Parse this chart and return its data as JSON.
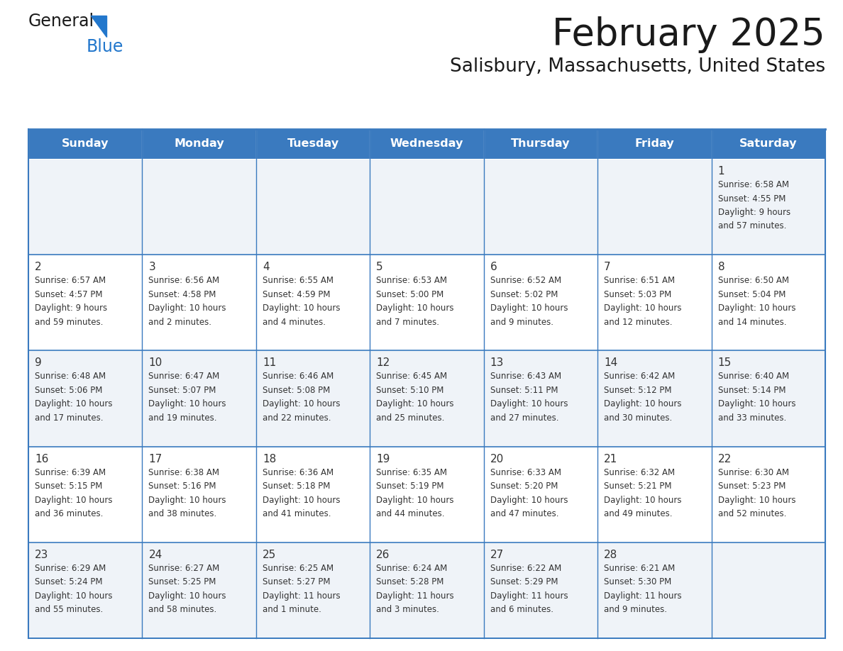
{
  "title": "February 2025",
  "subtitle": "Salisbury, Massachusetts, United States",
  "header_bg": "#3a7abf",
  "header_text": "#ffffff",
  "row_bg": [
    "#eff3f8",
    "#ffffff",
    "#eff3f8",
    "#ffffff",
    "#eff3f8"
  ],
  "border_color": "#3a7abf",
  "cell_border_color": "#3a7abf",
  "day_headers": [
    "Sunday",
    "Monday",
    "Tuesday",
    "Wednesday",
    "Thursday",
    "Friday",
    "Saturday"
  ],
  "title_color": "#1a1a1a",
  "subtitle_color": "#1a1a1a",
  "cell_text_color": "#333333",
  "day_num_color": "#333333",
  "logo_text_color": "#1a1a1a",
  "logo_blue_color": "#2277cc",
  "logo_triangle_color": "#2277cc",
  "days": [
    {
      "day": 1,
      "col": 6,
      "row": 0,
      "sunrise": "6:58 AM",
      "sunset": "4:55 PM",
      "daylight_line1": "9 hours",
      "daylight_line2": "and 57 minutes."
    },
    {
      "day": 2,
      "col": 0,
      "row": 1,
      "sunrise": "6:57 AM",
      "sunset": "4:57 PM",
      "daylight_line1": "9 hours",
      "daylight_line2": "and 59 minutes."
    },
    {
      "day": 3,
      "col": 1,
      "row": 1,
      "sunrise": "6:56 AM",
      "sunset": "4:58 PM",
      "daylight_line1": "10 hours",
      "daylight_line2": "and 2 minutes."
    },
    {
      "day": 4,
      "col": 2,
      "row": 1,
      "sunrise": "6:55 AM",
      "sunset": "4:59 PM",
      "daylight_line1": "10 hours",
      "daylight_line2": "and 4 minutes."
    },
    {
      "day": 5,
      "col": 3,
      "row": 1,
      "sunrise": "6:53 AM",
      "sunset": "5:00 PM",
      "daylight_line1": "10 hours",
      "daylight_line2": "and 7 minutes."
    },
    {
      "day": 6,
      "col": 4,
      "row": 1,
      "sunrise": "6:52 AM",
      "sunset": "5:02 PM",
      "daylight_line1": "10 hours",
      "daylight_line2": "and 9 minutes."
    },
    {
      "day": 7,
      "col": 5,
      "row": 1,
      "sunrise": "6:51 AM",
      "sunset": "5:03 PM",
      "daylight_line1": "10 hours",
      "daylight_line2": "and 12 minutes."
    },
    {
      "day": 8,
      "col": 6,
      "row": 1,
      "sunrise": "6:50 AM",
      "sunset": "5:04 PM",
      "daylight_line1": "10 hours",
      "daylight_line2": "and 14 minutes."
    },
    {
      "day": 9,
      "col": 0,
      "row": 2,
      "sunrise": "6:48 AM",
      "sunset": "5:06 PM",
      "daylight_line1": "10 hours",
      "daylight_line2": "and 17 minutes."
    },
    {
      "day": 10,
      "col": 1,
      "row": 2,
      "sunrise": "6:47 AM",
      "sunset": "5:07 PM",
      "daylight_line1": "10 hours",
      "daylight_line2": "and 19 minutes."
    },
    {
      "day": 11,
      "col": 2,
      "row": 2,
      "sunrise": "6:46 AM",
      "sunset": "5:08 PM",
      "daylight_line1": "10 hours",
      "daylight_line2": "and 22 minutes."
    },
    {
      "day": 12,
      "col": 3,
      "row": 2,
      "sunrise": "6:45 AM",
      "sunset": "5:10 PM",
      "daylight_line1": "10 hours",
      "daylight_line2": "and 25 minutes."
    },
    {
      "day": 13,
      "col": 4,
      "row": 2,
      "sunrise": "6:43 AM",
      "sunset": "5:11 PM",
      "daylight_line1": "10 hours",
      "daylight_line2": "and 27 minutes."
    },
    {
      "day": 14,
      "col": 5,
      "row": 2,
      "sunrise": "6:42 AM",
      "sunset": "5:12 PM",
      "daylight_line1": "10 hours",
      "daylight_line2": "and 30 minutes."
    },
    {
      "day": 15,
      "col": 6,
      "row": 2,
      "sunrise": "6:40 AM",
      "sunset": "5:14 PM",
      "daylight_line1": "10 hours",
      "daylight_line2": "and 33 minutes."
    },
    {
      "day": 16,
      "col": 0,
      "row": 3,
      "sunrise": "6:39 AM",
      "sunset": "5:15 PM",
      "daylight_line1": "10 hours",
      "daylight_line2": "and 36 minutes."
    },
    {
      "day": 17,
      "col": 1,
      "row": 3,
      "sunrise": "6:38 AM",
      "sunset": "5:16 PM",
      "daylight_line1": "10 hours",
      "daylight_line2": "and 38 minutes."
    },
    {
      "day": 18,
      "col": 2,
      "row": 3,
      "sunrise": "6:36 AM",
      "sunset": "5:18 PM",
      "daylight_line1": "10 hours",
      "daylight_line2": "and 41 minutes."
    },
    {
      "day": 19,
      "col": 3,
      "row": 3,
      "sunrise": "6:35 AM",
      "sunset": "5:19 PM",
      "daylight_line1": "10 hours",
      "daylight_line2": "and 44 minutes."
    },
    {
      "day": 20,
      "col": 4,
      "row": 3,
      "sunrise": "6:33 AM",
      "sunset": "5:20 PM",
      "daylight_line1": "10 hours",
      "daylight_line2": "and 47 minutes."
    },
    {
      "day": 21,
      "col": 5,
      "row": 3,
      "sunrise": "6:32 AM",
      "sunset": "5:21 PM",
      "daylight_line1": "10 hours",
      "daylight_line2": "and 49 minutes."
    },
    {
      "day": 22,
      "col": 6,
      "row": 3,
      "sunrise": "6:30 AM",
      "sunset": "5:23 PM",
      "daylight_line1": "10 hours",
      "daylight_line2": "and 52 minutes."
    },
    {
      "day": 23,
      "col": 0,
      "row": 4,
      "sunrise": "6:29 AM",
      "sunset": "5:24 PM",
      "daylight_line1": "10 hours",
      "daylight_line2": "and 55 minutes."
    },
    {
      "day": 24,
      "col": 1,
      "row": 4,
      "sunrise": "6:27 AM",
      "sunset": "5:25 PM",
      "daylight_line1": "10 hours",
      "daylight_line2": "and 58 minutes."
    },
    {
      "day": 25,
      "col": 2,
      "row": 4,
      "sunrise": "6:25 AM",
      "sunset": "5:27 PM",
      "daylight_line1": "11 hours",
      "daylight_line2": "and 1 minute."
    },
    {
      "day": 26,
      "col": 3,
      "row": 4,
      "sunrise": "6:24 AM",
      "sunset": "5:28 PM",
      "daylight_line1": "11 hours",
      "daylight_line2": "and 3 minutes."
    },
    {
      "day": 27,
      "col": 4,
      "row": 4,
      "sunrise": "6:22 AM",
      "sunset": "5:29 PM",
      "daylight_line1": "11 hours",
      "daylight_line2": "and 6 minutes."
    },
    {
      "day": 28,
      "col": 5,
      "row": 4,
      "sunrise": "6:21 AM",
      "sunset": "5:30 PM",
      "daylight_line1": "11 hours",
      "daylight_line2": "and 9 minutes."
    }
  ]
}
